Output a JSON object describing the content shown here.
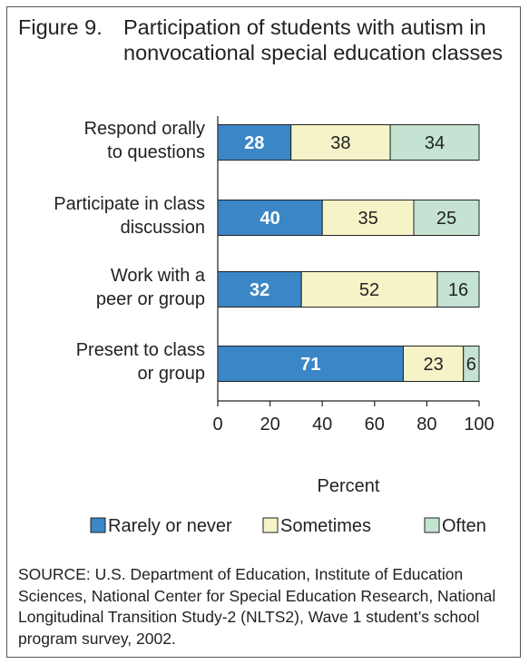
{
  "figure_number": "Figure 9.",
  "title": "Participation of students with autism in nonvocational special education classes",
  "source": "SOURCE: U.S. Department of Education, Institute of Education Sciences, National Center for Special Education Research, National Longitudinal Transition Study-2 (NLTS2), Wave 1 student’s school program survey, 2002.",
  "chart_data": {
    "type": "bar",
    "orientation": "horizontal",
    "stacked": true,
    "categories": [
      [
        "Respond orally",
        "to questions"
      ],
      [
        "Participate in class",
        "discussion"
      ],
      [
        "Work with a",
        "peer or group"
      ],
      [
        "Present to class",
        "or group"
      ]
    ],
    "series": [
      {
        "name": "Rarely or never",
        "values": [
          28,
          40,
          32,
          71
        ],
        "color": "#3b86c6",
        "label_color": "#ffffff",
        "label_bold": true
      },
      {
        "name": "Sometimes",
        "values": [
          38,
          35,
          52,
          23
        ],
        "color": "#f6f3c8",
        "label_color": "#222222",
        "label_bold": false
      },
      {
        "name": "Often",
        "values": [
          34,
          25,
          16,
          6
        ],
        "color": "#c4e3d2",
        "label_color": "#222222",
        "label_bold": false
      }
    ],
    "xlim": [
      0,
      100
    ],
    "xticks": [
      0,
      20,
      40,
      60,
      80,
      100
    ],
    "xlabel": "Percent",
    "legend_position": "bottom",
    "grid": false
  }
}
